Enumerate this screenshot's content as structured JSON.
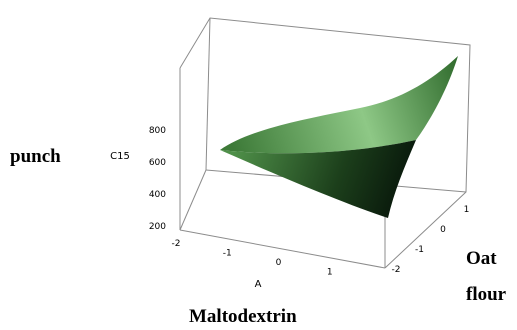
{
  "chart_data": {
    "type": "surface",
    "zlabel": "C15",
    "x_axis_letter": "A",
    "xlabel": "Maltodextrin",
    "ylabel_line1": "Oat",
    "ylabel_line2": "flour",
    "side_label": "punch",
    "xticks": [
      "-2",
      "-1",
      "0",
      "1"
    ],
    "yticks": [
      "-2",
      "-1",
      "0",
      "1"
    ],
    "zticks": [
      "200",
      "400",
      "600",
      "800"
    ],
    "xlim": [
      -2,
      2
    ],
    "ylim": [
      -2,
      2
    ],
    "zlim": [
      200,
      900
    ],
    "surface_corners": [
      {
        "x": -2,
        "y": -2,
        "z": 650
      },
      {
        "x": 2,
        "y": -2,
        "z": 260
      },
      {
        "x": 2,
        "y": 2,
        "z": 1000
      },
      {
        "x": -2,
        "y": 2,
        "z": 730
      }
    ],
    "colors": {
      "surface_light": "#a6d59c",
      "surface_mid": "#5d9a55",
      "surface_dark": "#0e2810"
    }
  }
}
